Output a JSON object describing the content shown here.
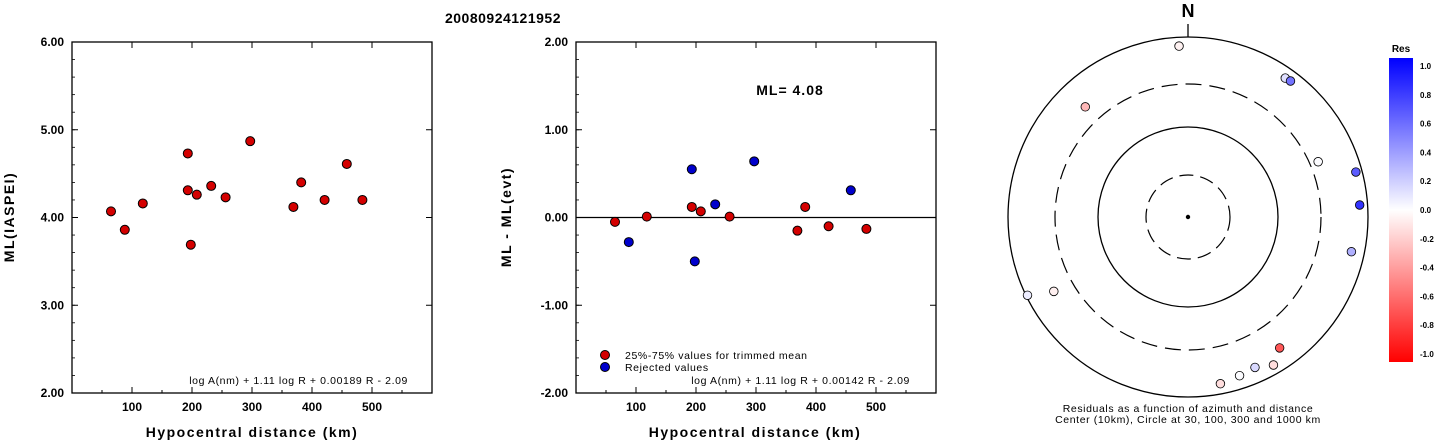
{
  "title": "20080924121952",
  "chart_data": [
    {
      "type": "scatter",
      "ylabel": "ML(IASPEI)",
      "xlabel": "Hypocentral distance (km)",
      "xlim": [
        0,
        600
      ],
      "ylim": [
        2,
        6
      ],
      "x_ticks": [
        100,
        200,
        300,
        400,
        500
      ],
      "y_ticks": [
        "2.00",
        "3.00",
        "4.00",
        "5.00",
        "6.00"
      ],
      "formula": "log A(nm) + 1.11 log R + 0.00189 R - 2.09",
      "points": [
        {
          "x": 65,
          "y": 4.07
        },
        {
          "x": 88,
          "y": 3.86
        },
        {
          "x": 118,
          "y": 4.16
        },
        {
          "x": 193,
          "y": 4.73
        },
        {
          "x": 193,
          "y": 4.31
        },
        {
          "x": 198,
          "y": 3.69
        },
        {
          "x": 208,
          "y": 4.26
        },
        {
          "x": 232,
          "y": 4.36
        },
        {
          "x": 256,
          "y": 4.23
        },
        {
          "x": 297,
          "y": 4.87
        },
        {
          "x": 369,
          "y": 4.12
        },
        {
          "x": 382,
          "y": 4.4
        },
        {
          "x": 421,
          "y": 4.2
        },
        {
          "x": 458,
          "y": 4.61
        },
        {
          "x": 484,
          "y": 4.2
        }
      ]
    },
    {
      "type": "scatter",
      "ylabel": "ML - ML(evt)",
      "xlabel": "Hypocentral distance (km)",
      "xlim": [
        0,
        600
      ],
      "ylim": [
        -2,
        2
      ],
      "x_ticks": [
        100,
        200,
        300,
        400,
        500
      ],
      "y_ticks": [
        "-2.00",
        "-1.00",
        "0.00",
        "1.00",
        "2.00"
      ],
      "annotation": "ML= 4.08",
      "formula": "log A(nm) + 1.11 log R + 0.00142 R - 2.09",
      "legend": [
        "25%-75% values for trimmed mean",
        "Rejected values"
      ],
      "series": [
        {
          "color": "#d40000",
          "points": [
            {
              "x": 65,
              "y": -0.05
            },
            {
              "x": 118,
              "y": 0.01
            },
            {
              "x": 193,
              "y": 0.12
            },
            {
              "x": 208,
              "y": 0.07
            },
            {
              "x": 256,
              "y": 0.01
            },
            {
              "x": 369,
              "y": -0.15
            },
            {
              "x": 382,
              "y": 0.12
            },
            {
              "x": 421,
              "y": -0.1
            },
            {
              "x": 484,
              "y": -0.13
            }
          ]
        },
        {
          "color": "#0000cc",
          "points": [
            {
              "x": 88,
              "y": -0.28
            },
            {
              "x": 193,
              "y": 0.55
            },
            {
              "x": 198,
              "y": -0.5
            },
            {
              "x": 232,
              "y": 0.15
            },
            {
              "x": 297,
              "y": 0.64
            },
            {
              "x": 458,
              "y": 0.31
            }
          ]
        }
      ]
    },
    {
      "type": "polar-scatter",
      "north_label": "N",
      "caption": [
        "Residuals as a function of azimuth and distance",
        "Center (10km), Circle at 30, 100, 300 and 1000 km"
      ],
      "colorbar": {
        "title": "Res",
        "ticks": [
          "1.0",
          "0.8",
          "0.6",
          "0.4",
          "0.2",
          "0.0",
          "-0.2",
          "-0.4",
          "-0.6",
          "-0.8",
          "-1.0"
        ],
        "max_color": "#0000ff",
        "min_color": "#ff0000"
      },
      "points": [
        {
          "az": -3,
          "dist": 797,
          "res": -0.05
        },
        {
          "az": 35,
          "dist": 766,
          "res": 0.12
        },
        {
          "az": 37,
          "dist": 780,
          "res": 0.55
        },
        {
          "az": -43,
          "dist": 471,
          "res": -0.28
        },
        {
          "az": 75,
          "dist": 853,
          "res": 0.64
        },
        {
          "az": 67,
          "dist": 372,
          "res": 0.01
        },
        {
          "az": 86,
          "dist": 817,
          "res": 0.8
        },
        {
          "az": 102,
          "dist": 718,
          "res": 0.31
        },
        {
          "az": -119,
          "dist": 506,
          "res": -0.06
        },
        {
          "az": -116,
          "dist": 964,
          "res": 0.07
        },
        {
          "az": 145,
          "dist": 596,
          "res": -0.66
        },
        {
          "az": 156,
          "dist": 675,
          "res": 0.15
        },
        {
          "az": 162,
          "dist": 714,
          "res": 0.01
        },
        {
          "az": 169,
          "dist": 771,
          "res": -0.13
        },
        {
          "az": 150,
          "dist": 792,
          "res": -0.13
        }
      ]
    }
  ]
}
